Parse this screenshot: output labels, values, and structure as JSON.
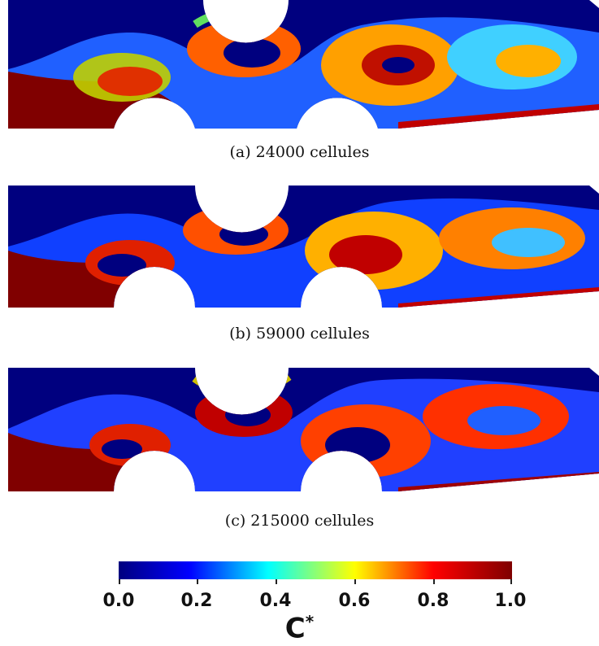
{
  "figure": {
    "panels": [
      {
        "caption": "(a) 24000 cellules"
      },
      {
        "caption": "(b) 59000 cellules"
      },
      {
        "caption": "(c) 215000 cellules"
      }
    ],
    "colorbar": {
      "colormap": [
        "#00007f",
        "#0000ff",
        "#00ffff",
        "#ffff00",
        "#ff0000",
        "#7f0000"
      ],
      "range": [
        0.0,
        1.0
      ],
      "ticks": [
        "0.0",
        "0.2",
        "0.4",
        "0.6",
        "0.8",
        "1.0"
      ],
      "title": "C",
      "title_superscript": "*"
    }
  }
}
